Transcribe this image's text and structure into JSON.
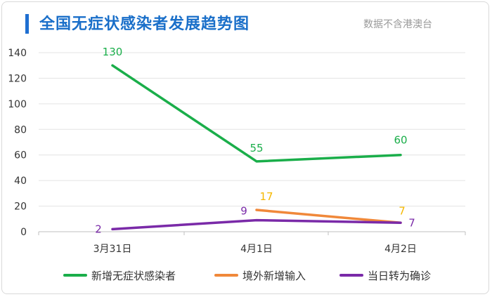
{
  "header": {
    "title": "全国无症状感染者发展趋势图",
    "subtitle": "数据不含港澳台"
  },
  "chart_data": {
    "type": "line",
    "title": "全国无症状感染者发展趋势图",
    "subtitle": "数据不含港澳台",
    "categories": [
      "3月31日",
      "4月1日",
      "4月2日"
    ],
    "series": [
      {
        "name": "新增无症状感染者",
        "values": [
          130,
          55,
          60
        ],
        "color": "#1aae4a",
        "label_color": "#1aae4a"
      },
      {
        "name": "境外新增输入",
        "values": [
          null,
          17,
          7
        ],
        "color": "#f0883a",
        "label_color": "#f5b800"
      },
      {
        "name": "当日转为确诊",
        "values": [
          2,
          9,
          7
        ],
        "color": "#7a2aa8",
        "label_color": "#7a2aa8"
      }
    ],
    "ylim": [
      0,
      140
    ],
    "yticks": [
      0,
      20,
      40,
      60,
      80,
      100,
      120,
      140
    ],
    "xlabel": "",
    "ylabel": "",
    "grid": true,
    "legend": "bottom"
  }
}
